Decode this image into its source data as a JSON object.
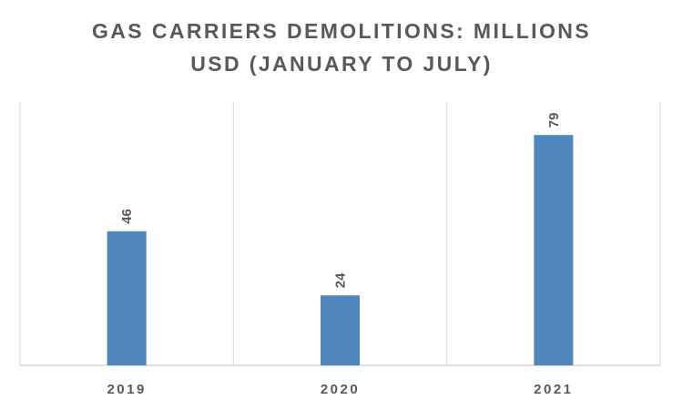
{
  "chart_data": {
    "type": "bar",
    "title": "GAS CARRIERS DEMOLITIONS: MILLIONS USD (JANUARY TO JULY)",
    "categories": [
      "2019",
      "2020",
      "2021"
    ],
    "values": [
      46,
      24,
      79
    ],
    "color": "#4f87bd",
    "grid": true
  }
}
